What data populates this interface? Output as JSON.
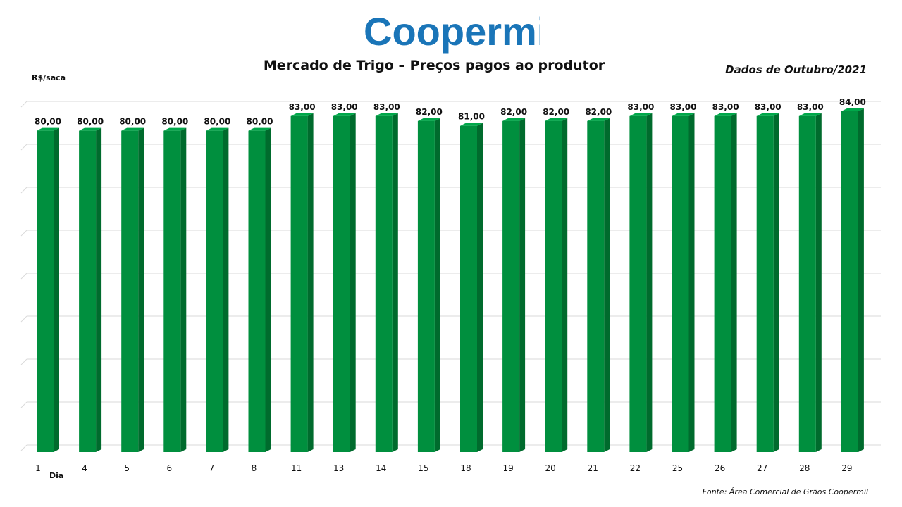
{
  "logo": {
    "text": "Coopermil",
    "color": "#1a75b8"
  },
  "title": "Mercado de Trigo – Preços pagos ao produtor",
  "subtitle": "Dados de Outubro/2021",
  "source": "Fonte: Área Comercial  de Grãos Coopermil",
  "colors": {
    "bar_front": "#008f3e",
    "bar_side": "#006b2d",
    "bar_top": "#00a84a",
    "grid": "#d9d9d9"
  },
  "chart_data": {
    "type": "bar",
    "title": "Mercado de Trigo – Preços pagos ao produtor",
    "xlabel": "Dia",
    "ylabel": "R$/saca",
    "categories": [
      "1",
      "4",
      "5",
      "6",
      "7",
      "8",
      "11",
      "13",
      "14",
      "15",
      "18",
      "19",
      "20",
      "21",
      "22",
      "25",
      "26",
      "27",
      "28",
      "29"
    ],
    "values": [
      80,
      80,
      80,
      80,
      80,
      80,
      83,
      83,
      83,
      82,
      81,
      82,
      82,
      82,
      83,
      83,
      83,
      83,
      83,
      84
    ],
    "data_labels": [
      "80,00",
      "80,00",
      "80,00",
      "80,00",
      "80,00",
      "80,00",
      "83,00",
      "83,00",
      "83,00",
      "82,00",
      "81,00",
      "82,00",
      "82,00",
      "82,00",
      "83,00",
      "83,00",
      "83,00",
      "83,00",
      "83,00",
      "84,00"
    ],
    "grid": true,
    "legend": "none"
  }
}
